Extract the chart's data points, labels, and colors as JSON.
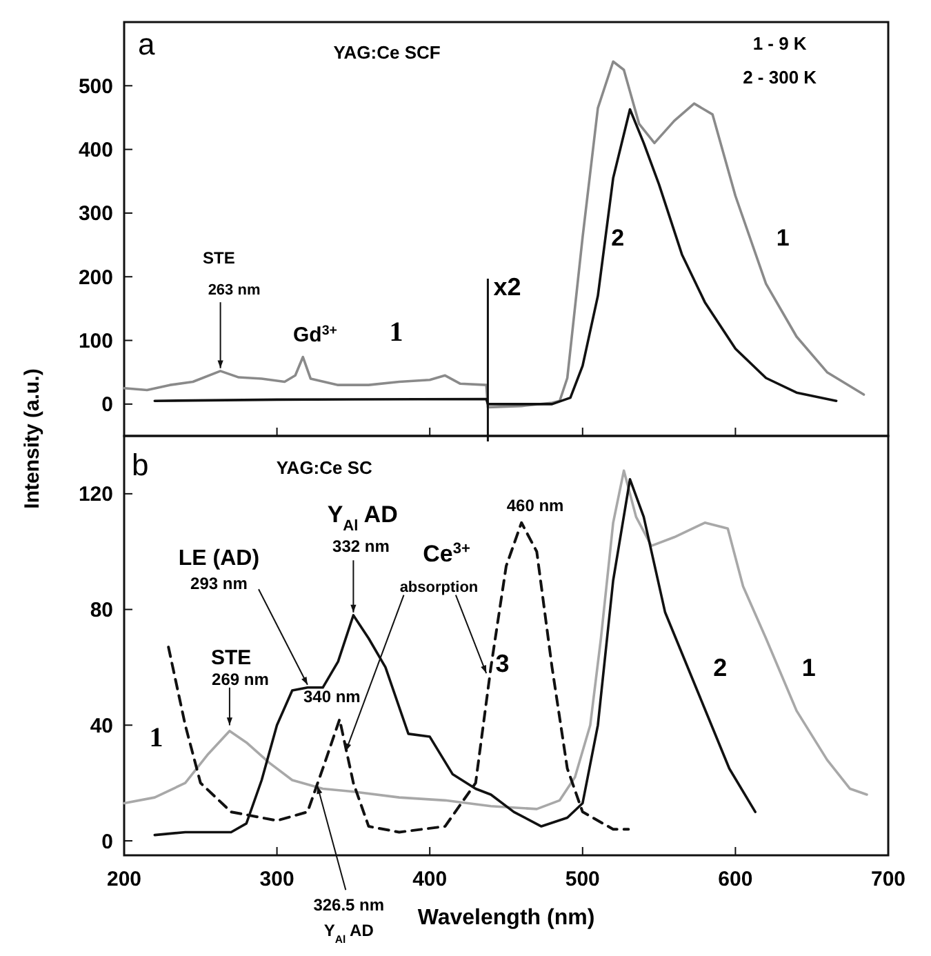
{
  "chart_data": [
    {
      "type": "line",
      "xlim": [
        200,
        700
      ],
      "xticks": [
        200,
        300,
        400,
        500,
        600,
        700
      ],
      "ylim": [
        -50,
        600
      ],
      "yticks": [
        0,
        100,
        200,
        300,
        400,
        500
      ],
      "tick_labels": "y",
      "series": [
        {
          "color": "#8a8a8a",
          "x": [
            200,
            215,
            230,
            245,
            263,
            275,
            290,
            305,
            312,
            317,
            322,
            340,
            360,
            380,
            400,
            410,
            420,
            437,
            438,
            460,
            480,
            485,
            490,
            500,
            510,
            520,
            527,
            537,
            547,
            560,
            573,
            585,
            600,
            620,
            640,
            660,
            684
          ],
          "values": [
            25,
            22,
            30,
            35,
            52,
            42,
            40,
            35,
            45,
            74,
            40,
            30,
            30,
            35,
            38,
            45,
            32,
            30,
            -5,
            -3,
            2,
            5,
            41,
            262,
            465,
            538,
            525,
            440,
            410,
            445,
            472,
            455,
            327,
            189,
            106,
            50,
            15
          ]
        },
        {
          "color": "#111111",
          "x": [
            220,
            300,
            437,
            438,
            480,
            492,
            500,
            510,
            520,
            531,
            540,
            550,
            565,
            580,
            600,
            620,
            640,
            666
          ],
          "values": [
            5,
            7,
            8,
            0,
            0,
            10,
            60,
            170,
            355,
            463,
            410,
            345,
            235,
            160,
            87,
            41,
            18,
            5
          ]
        }
      ],
      "ref_lines": [
        {
          "axis": "x",
          "value": 438,
          "label": "x2",
          "color": "#111111"
        }
      ],
      "annotations": [
        "a",
        "YAG:Ce SCF",
        "1 - 9 K",
        "2 - 300 K",
        "STE",
        {
          "text": "263 nm",
          "x": 263,
          "y": 52
        },
        "Gd$^{3+}$",
        "1",
        "2",
        "1"
      ]
    },
    {
      "type": "line",
      "xlabel": "Wavelength (nm)",
      "ylabel": "Intensity (a.u.)",
      "xlim": [
        200,
        700
      ],
      "xticks": [
        200,
        300,
        400,
        500,
        600,
        700
      ],
      "ylim": [
        -5,
        140
      ],
      "yticks": [
        0,
        40,
        80,
        120
      ],
      "series": [
        {
          "color": "#a8a8a8",
          "x": [
            200,
            220,
            240,
            255,
            269,
            280,
            295,
            310,
            330,
            350,
            380,
            410,
            440,
            470,
            485,
            495,
            505,
            512,
            520,
            527,
            535,
            545,
            560,
            580,
            595,
            605,
            620,
            640,
            660,
            675,
            686
          ],
          "values": [
            13,
            15,
            20,
            30,
            38,
            34,
            27,
            21,
            18,
            17,
            15,
            14,
            12,
            11,
            14,
            22,
            40,
            70,
            110,
            128,
            112,
            102,
            105,
            110,
            108,
            88,
            70,
            45,
            28,
            18,
            16
          ]
        },
        {
          "color": "#111111",
          "x": [
            220,
            240,
            270,
            280,
            290,
            300,
            310,
            320,
            330,
            340,
            350,
            360,
            371,
            386,
            400,
            415,
            430,
            440,
            455,
            473,
            490,
            500,
            510,
            520,
            531,
            540,
            554,
            575,
            596,
            613
          ],
          "values": [
            2,
            3,
            3,
            6,
            21,
            40,
            52,
            53,
            53,
            62,
            78,
            70,
            60,
            37,
            36,
            23,
            18,
            16,
            10,
            5,
            8,
            13,
            40,
            90,
            125,
            112,
            79,
            52,
            25,
            10
          ]
        },
        {
          "color": "#111111",
          "line_style": "dashed",
          "x": [
            229,
            240,
            250,
            270,
            300,
            320,
            330,
            341,
            350,
            360,
            380,
            410,
            430,
            440,
            450,
            460,
            470,
            480,
            490,
            500,
            520,
            530
          ],
          "values": [
            67,
            40,
            20,
            10,
            7,
            10,
            25,
            42,
            20,
            5,
            3,
            5,
            20,
            60,
            95,
            110,
            100,
            60,
            25,
            10,
            4,
            4
          ]
        }
      ],
      "annotations": [
        "b",
        "YAG:Ce SC",
        "STE",
        {
          "text": "269 nm",
          "x": 269,
          "y": 39
        },
        "LE (AD)",
        {
          "text": "293 nm",
          "x": 320,
          "y": 53
        },
        "Y$_{Al}$ AD",
        {
          "text": "332 nm",
          "x": 350,
          "y": 78
        },
        {
          "text": "Ce$^{3+}$",
          "x": 437,
          "y": 57
        },
        {
          "text": "absorption",
          "x": 345,
          "y": 30
        },
        "460 nm",
        "340 nm",
        {
          "text": "326.5 nm",
          "x": 326.5,
          "y": 18
        },
        "Y$_{Al}$ AD",
        "1",
        "3",
        "2",
        "1"
      ]
    }
  ]
}
